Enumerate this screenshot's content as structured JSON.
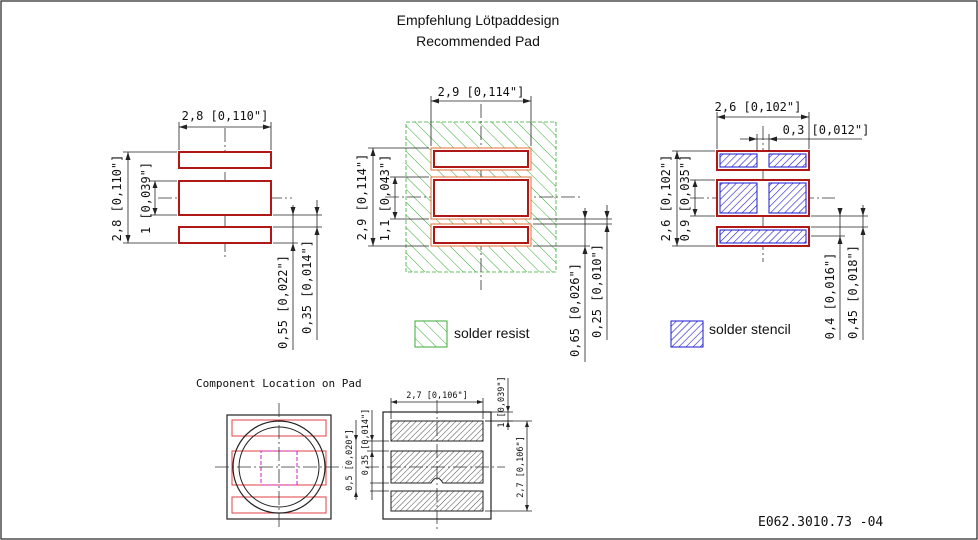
{
  "header": {
    "title_de": "Empfehlung Lötpaddesign",
    "title_en": "Recommended Pad"
  },
  "view_left": {
    "width": "2,8 [0,110\"]",
    "height": "2,8 [0,110\"]",
    "mid_pad": "1 [0,039\"]",
    "pitch": "0,55 [0,022\"]",
    "gap": "0,35 [0,014\"]"
  },
  "view_center": {
    "width": "2,9 [0,114\"]",
    "height": "2,9 [0,114\"]",
    "mid_pad": "1,1 [0,043\"]",
    "pitch": "0,65 [0,026\"]",
    "gap": "0,25 [0,010\"]",
    "legend": "solder resist"
  },
  "view_right": {
    "width": "2,6 [0,102\"]",
    "stencil_gap": "0,3 [0,012\"]",
    "height": "2,6 [0,102\"]",
    "mid_pad": "0,9 [0,035\"]",
    "pitch": "0,4 [0,016\"]",
    "gap": "0,45 [0,018\"]",
    "legend": "solder stencil"
  },
  "component": {
    "title": "Component Location on Pad",
    "width": "2,7 [0,106\"]",
    "top": "1 [0,039\"]",
    "height": "2,7 [0,106\"]",
    "gap": "0,35 [0,014\"]",
    "pitch": "0,5 [0,020\"]"
  },
  "footer": {
    "doc_number": "E062.3010.73 -04"
  },
  "colors": {
    "pad": "#b01818",
    "resist": "#3aaa35",
    "stencil": "#1a1ad0",
    "outline": "#222222"
  }
}
